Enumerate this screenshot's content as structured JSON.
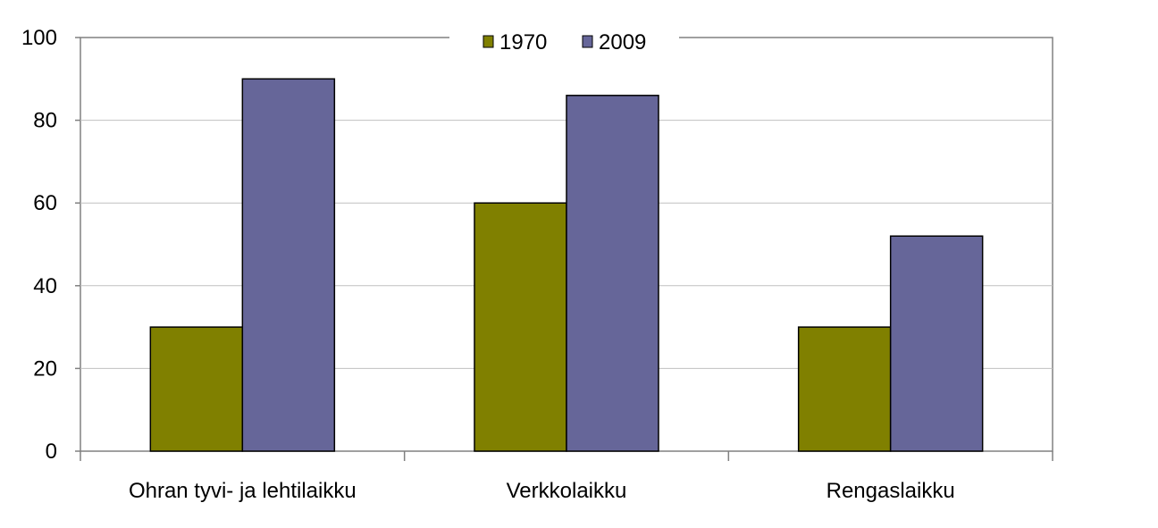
{
  "chart_data": {
    "type": "bar",
    "title": "",
    "xlabel": "",
    "ylabel": "",
    "categories": [
      "Ohran tyvi- ja lehtilaikku",
      "Verkkolaikku",
      "Rengaslaikku"
    ],
    "series": [
      {
        "name": "1970",
        "values": [
          30,
          60,
          30
        ],
        "color": "#808000"
      },
      {
        "name": "2009",
        "values": [
          90,
          86,
          52
        ],
        "color": "#666699"
      }
    ],
    "ylim": [
      0,
      100
    ],
    "yticks": [
      0,
      20,
      40,
      60,
      80,
      100
    ],
    "grid": true,
    "legend_position": "top-center"
  }
}
